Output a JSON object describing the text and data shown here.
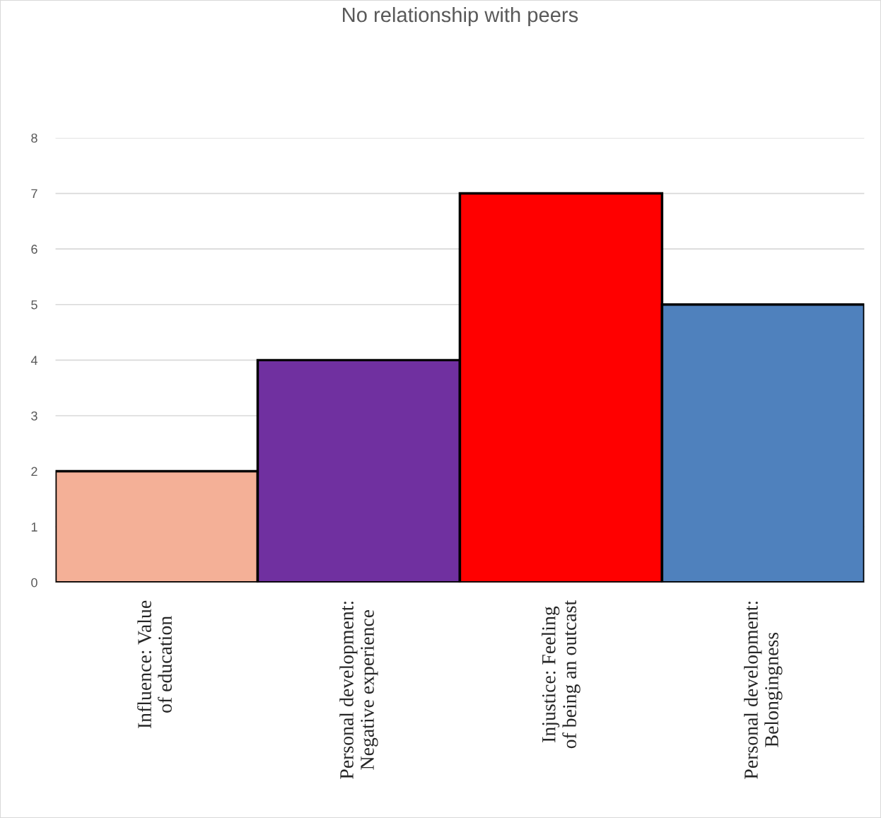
{
  "chart_data": {
    "type": "bar",
    "title": "No relationship with peers",
    "categories": [
      "Influence: Value\nof education",
      "Personal development:\nNegative experience",
      "Injustice: Feeling\nof being an outcast",
      "Personal development:\nBelongingness"
    ],
    "values": [
      2,
      4,
      7,
      5
    ],
    "colors": [
      "#f4b097",
      "#7030a0",
      "#ff0000",
      "#4f81bd"
    ],
    "ylim": [
      0,
      8
    ],
    "yticks": [
      0,
      1,
      2,
      3,
      4,
      5,
      6,
      7,
      8
    ],
    "grid": "y",
    "legend": false
  }
}
